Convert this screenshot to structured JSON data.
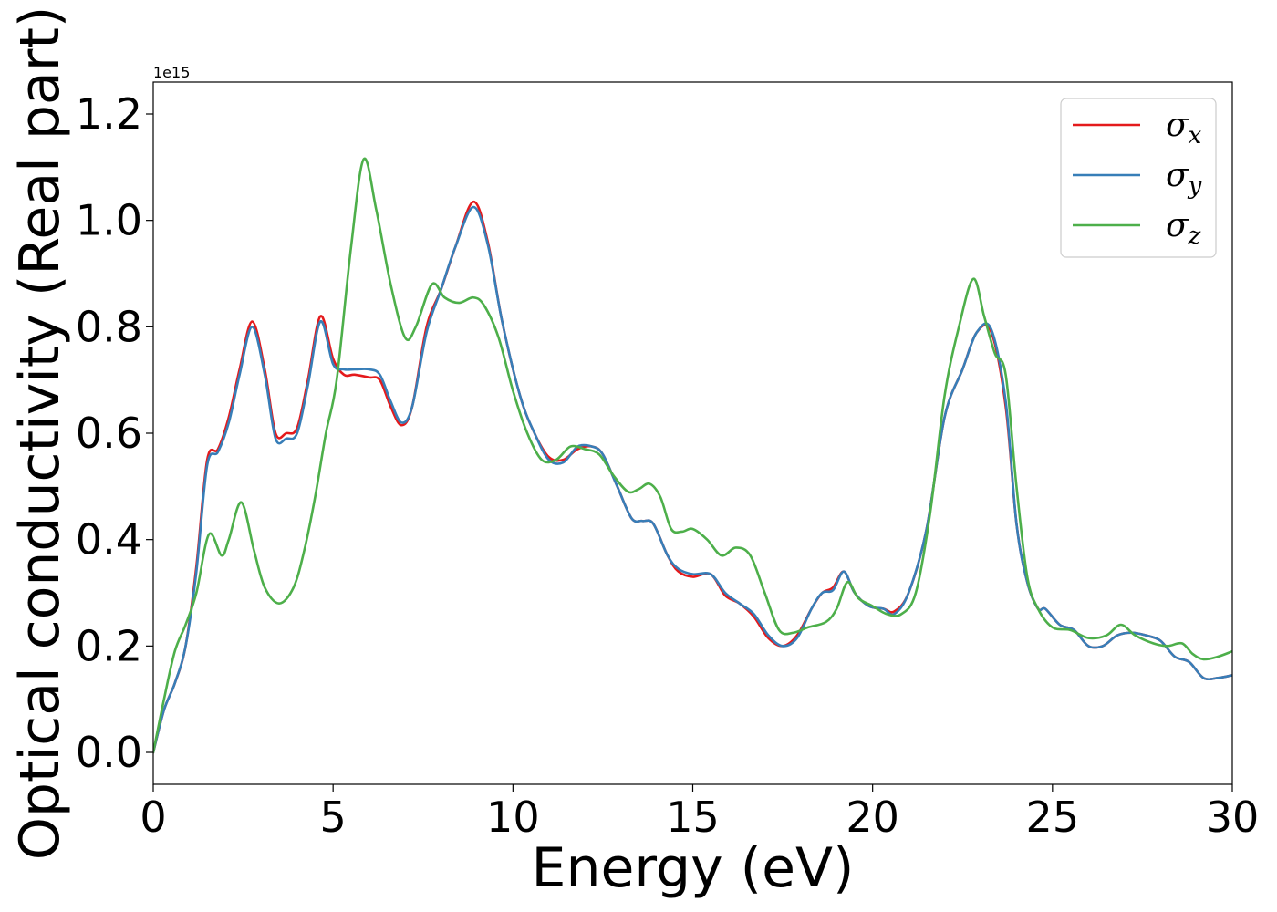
{
  "chart_data": {
    "type": "line",
    "title": "",
    "xlabel": "Energy (eV)",
    "ylabel": "Optical conductivity (Real part)",
    "y_offset_label": "1e15",
    "xlim": [
      0,
      30
    ],
    "ylim": [
      -0.06,
      1.26
    ],
    "x_ticks": [
      0,
      5,
      10,
      15,
      20,
      25,
      30
    ],
    "x_tick_labels": [
      "0",
      "5",
      "10",
      "15",
      "20",
      "25",
      "30"
    ],
    "y_ticks": [
      0.0,
      0.2,
      0.4,
      0.6,
      0.8,
      1.0,
      1.2
    ],
    "y_tick_labels": [
      "0.0",
      "0.2",
      "0.4",
      "0.6",
      "0.8",
      "1.0",
      "1.2"
    ],
    "grid": false,
    "legend_position": "top-right",
    "series": [
      {
        "name": "σx",
        "symbol": "σ",
        "subscript": "x",
        "color": "#e41a1c",
        "x": [
          0,
          0.3,
          0.6,
          0.9,
          1.2,
          1.5,
          1.8,
          2.1,
          2.4,
          2.75,
          3.1,
          3.4,
          3.7,
          4.0,
          4.3,
          4.65,
          5.0,
          5.3,
          5.6,
          6.0,
          6.3,
          6.6,
          6.9,
          7.2,
          7.6,
          8.0,
          8.4,
          8.9,
          9.3,
          9.7,
          10.2,
          10.6,
          11.0,
          11.4,
          11.8,
          12.2,
          12.5,
          12.9,
          13.3,
          13.6,
          13.9,
          14.3,
          14.6,
          15.0,
          15.5,
          15.9,
          16.3,
          16.7,
          17.1,
          17.5,
          17.9,
          18.3,
          18.6,
          18.9,
          19.2,
          19.5,
          19.9,
          20.3,
          20.6,
          21.0,
          21.5,
          22.0,
          22.5,
          22.9,
          23.3,
          23.7,
          24.0,
          24.3,
          24.6,
          24.8,
          25.2,
          25.6,
          26.0,
          26.4,
          26.8,
          27.2,
          27.6,
          28.0,
          28.4,
          28.8,
          29.2,
          29.6,
          30.0
        ],
        "y": [
          0.0,
          0.08,
          0.13,
          0.2,
          0.35,
          0.55,
          0.57,
          0.63,
          0.72,
          0.81,
          0.72,
          0.6,
          0.6,
          0.61,
          0.7,
          0.82,
          0.74,
          0.71,
          0.71,
          0.705,
          0.7,
          0.65,
          0.615,
          0.65,
          0.8,
          0.87,
          0.95,
          1.035,
          0.96,
          0.81,
          0.67,
          0.6,
          0.555,
          0.55,
          0.57,
          0.575,
          0.56,
          0.5,
          0.44,
          0.435,
          0.43,
          0.37,
          0.34,
          0.33,
          0.335,
          0.295,
          0.28,
          0.255,
          0.215,
          0.2,
          0.22,
          0.27,
          0.3,
          0.31,
          0.34,
          0.3,
          0.275,
          0.27,
          0.265,
          0.3,
          0.42,
          0.63,
          0.72,
          0.79,
          0.79,
          0.65,
          0.43,
          0.32,
          0.27,
          0.27,
          0.24,
          0.23,
          0.2,
          0.2,
          0.22,
          0.225,
          0.22,
          0.21,
          0.18,
          0.17,
          0.14,
          0.14,
          0.145
        ]
      },
      {
        "name": "σy",
        "symbol": "σ",
        "subscript": "y",
        "color": "#377eb8",
        "x": [
          0,
          0.3,
          0.6,
          0.9,
          1.2,
          1.5,
          1.8,
          2.1,
          2.4,
          2.75,
          3.1,
          3.4,
          3.7,
          4.0,
          4.3,
          4.65,
          5.0,
          5.3,
          5.6,
          6.0,
          6.3,
          6.6,
          6.9,
          7.2,
          7.6,
          8.0,
          8.4,
          8.9,
          9.3,
          9.7,
          10.2,
          10.6,
          11.0,
          11.4,
          11.8,
          12.2,
          12.5,
          12.9,
          13.3,
          13.6,
          13.9,
          14.3,
          14.6,
          15.0,
          15.5,
          15.9,
          16.3,
          16.7,
          17.1,
          17.5,
          17.9,
          18.3,
          18.6,
          18.9,
          19.2,
          19.5,
          19.9,
          20.3,
          20.6,
          21.0,
          21.5,
          22.0,
          22.5,
          22.9,
          23.3,
          23.7,
          24.0,
          24.3,
          24.6,
          24.8,
          25.2,
          25.6,
          26.0,
          26.4,
          26.8,
          27.2,
          27.6,
          28.0,
          28.4,
          28.8,
          29.2,
          29.6,
          30.0
        ],
        "y": [
          0.0,
          0.08,
          0.13,
          0.2,
          0.34,
          0.54,
          0.565,
          0.62,
          0.71,
          0.8,
          0.71,
          0.59,
          0.59,
          0.6,
          0.69,
          0.81,
          0.73,
          0.72,
          0.72,
          0.72,
          0.71,
          0.66,
          0.62,
          0.65,
          0.79,
          0.87,
          0.95,
          1.025,
          0.955,
          0.81,
          0.67,
          0.6,
          0.55,
          0.545,
          0.575,
          0.575,
          0.56,
          0.5,
          0.44,
          0.435,
          0.43,
          0.37,
          0.345,
          0.335,
          0.335,
          0.3,
          0.28,
          0.26,
          0.22,
          0.2,
          0.215,
          0.27,
          0.3,
          0.305,
          0.34,
          0.3,
          0.275,
          0.27,
          0.26,
          0.3,
          0.42,
          0.63,
          0.72,
          0.79,
          0.795,
          0.66,
          0.43,
          0.32,
          0.27,
          0.27,
          0.24,
          0.23,
          0.2,
          0.2,
          0.22,
          0.225,
          0.22,
          0.21,
          0.18,
          0.17,
          0.14,
          0.14,
          0.145
        ]
      },
      {
        "name": "σz",
        "symbol": "σ",
        "subscript": "z",
        "color": "#4daf4a",
        "x": [
          0,
          0.3,
          0.6,
          0.9,
          1.2,
          1.55,
          1.9,
          2.1,
          2.45,
          2.8,
          3.1,
          3.5,
          3.9,
          4.2,
          4.5,
          4.8,
          5.1,
          5.5,
          5.85,
          6.2,
          6.6,
          7.0,
          7.3,
          7.75,
          8.1,
          8.5,
          8.9,
          9.2,
          9.6,
          10.0,
          10.4,
          10.8,
          11.2,
          11.6,
          12.0,
          12.4,
          12.8,
          13.2,
          13.5,
          13.8,
          14.1,
          14.4,
          14.7,
          15.0,
          15.4,
          15.8,
          16.2,
          16.6,
          17.0,
          17.4,
          17.8,
          18.2,
          18.7,
          19.0,
          19.3,
          19.6,
          20.0,
          20.4,
          20.8,
          21.2,
          21.6,
          22.0,
          22.4,
          22.8,
          23.1,
          23.4,
          23.7,
          24.0,
          24.3,
          24.6,
          25.0,
          25.5,
          26.0,
          26.5,
          26.9,
          27.3,
          27.8,
          28.2,
          28.6,
          28.9,
          29.2,
          29.6,
          30.0
        ],
        "y": [
          0.0,
          0.1,
          0.19,
          0.24,
          0.3,
          0.41,
          0.37,
          0.4,
          0.47,
          0.38,
          0.31,
          0.28,
          0.31,
          0.38,
          0.48,
          0.6,
          0.7,
          0.95,
          1.115,
          1.02,
          0.88,
          0.78,
          0.8,
          0.88,
          0.855,
          0.845,
          0.855,
          0.84,
          0.78,
          0.68,
          0.6,
          0.55,
          0.55,
          0.575,
          0.57,
          0.56,
          0.52,
          0.49,
          0.495,
          0.505,
          0.48,
          0.42,
          0.415,
          0.42,
          0.4,
          0.37,
          0.385,
          0.37,
          0.3,
          0.23,
          0.225,
          0.235,
          0.245,
          0.27,
          0.32,
          0.29,
          0.275,
          0.26,
          0.26,
          0.3,
          0.45,
          0.67,
          0.8,
          0.89,
          0.82,
          0.75,
          0.71,
          0.5,
          0.33,
          0.27,
          0.235,
          0.23,
          0.215,
          0.22,
          0.24,
          0.22,
          0.205,
          0.2,
          0.205,
          0.185,
          0.175,
          0.18,
          0.19
        ]
      }
    ]
  }
}
